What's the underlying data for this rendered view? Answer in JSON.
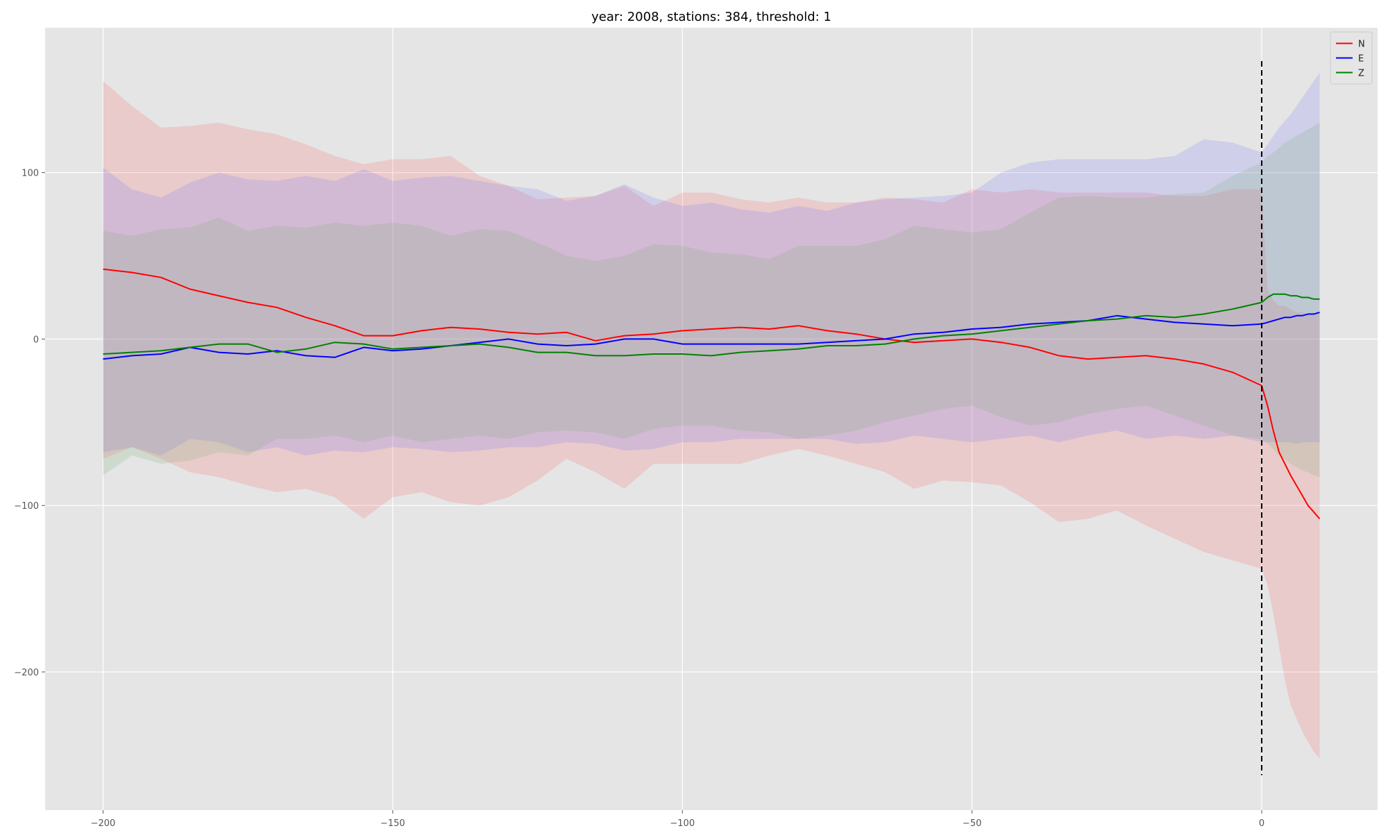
{
  "chart_data": {
    "type": "line",
    "title": "year: 2008, stations: 384, threshold: 1",
    "xlabel": "",
    "ylabel": "",
    "xlim": [
      -210,
      20
    ],
    "ylim": [
      -283,
      187
    ],
    "x_ticks": [
      -200,
      -150,
      -100,
      -50,
      0
    ],
    "y_ticks": [
      -200,
      -100,
      0,
      100
    ],
    "x_tick_labels": [
      "−200",
      "−150",
      "−100",
      "−50",
      "0"
    ],
    "y_tick_labels": [
      "−200",
      "−100",
      "0",
      "100"
    ],
    "grid": true,
    "background": "#e5e5e5",
    "legend_position": "top-right",
    "vline": {
      "x": 0,
      "y_range": [
        -262,
        167
      ],
      "style": "dashed",
      "color": "#000000"
    },
    "series": [
      {
        "name": "N",
        "color": "#ff0000",
        "band_color": "rgba(255,80,80,0.17)",
        "x": [
          -200,
          -195,
          -190,
          -185,
          -180,
          -175,
          -170,
          -165,
          -160,
          -155,
          -150,
          -145,
          -140,
          -135,
          -130,
          -125,
          -120,
          -115,
          -110,
          -105,
          -100,
          -95,
          -90,
          -85,
          -80,
          -75,
          -70,
          -65,
          -60,
          -55,
          -50,
          -45,
          -40,
          -35,
          -30,
          -25,
          -20,
          -15,
          -10,
          -5,
          0,
          1,
          2,
          3,
          4,
          5,
          6,
          7,
          8,
          9,
          10
        ],
        "mean": [
          42,
          40,
          37,
          30,
          26,
          22,
          19,
          13,
          8,
          2,
          2,
          5,
          7,
          6,
          4,
          3,
          4,
          -1,
          2,
          3,
          5,
          6,
          7,
          6,
          8,
          5,
          3,
          0,
          -2,
          -1,
          0,
          -2,
          -5,
          -10,
          -12,
          -11,
          -10,
          -12,
          -15,
          -20,
          -28,
          -40,
          -55,
          -68,
          -75,
          -82,
          -88,
          -94,
          -100,
          -104,
          -108
        ],
        "upper": [
          155,
          140,
          127,
          128,
          130,
          126,
          123,
          117,
          110,
          105,
          108,
          108,
          110,
          98,
          92,
          84,
          85,
          86,
          92,
          80,
          88,
          88,
          84,
          82,
          85,
          82,
          82,
          85,
          84,
          82,
          90,
          88,
          90,
          88,
          88,
          88,
          88,
          86,
          86,
          90,
          90,
          30,
          23,
          20,
          20,
          18,
          16,
          16,
          15,
          15,
          15
        ],
        "lower": [
          -72,
          -65,
          -72,
          -80,
          -83,
          -88,
          -92,
          -90,
          -95,
          -108,
          -95,
          -92,
          -98,
          -100,
          -95,
          -85,
          -72,
          -80,
          -90,
          -75,
          -75,
          -75,
          -75,
          -70,
          -66,
          -70,
          -75,
          -80,
          -90,
          -85,
          -86,
          -88,
          -98,
          -110,
          -108,
          -103,
          -112,
          -120,
          -128,
          -133,
          -138,
          -148,
          -165,
          -185,
          -205,
          -220,
          -228,
          -236,
          -242,
          -248,
          -252
        ]
      },
      {
        "name": "E",
        "color": "#0000ff",
        "band_color": "rgba(110,110,255,0.18)",
        "x": [
          -200,
          -195,
          -190,
          -185,
          -180,
          -175,
          -170,
          -165,
          -160,
          -155,
          -150,
          -145,
          -140,
          -135,
          -130,
          -125,
          -120,
          -115,
          -110,
          -105,
          -100,
          -95,
          -90,
          -85,
          -80,
          -75,
          -70,
          -65,
          -60,
          -55,
          -50,
          -45,
          -40,
          -35,
          -30,
          -25,
          -20,
          -15,
          -10,
          -5,
          0,
          1,
          2,
          3,
          4,
          5,
          6,
          7,
          8,
          9,
          10
        ],
        "mean": [
          -12,
          -10,
          -9,
          -5,
          -8,
          -9,
          -7,
          -10,
          -11,
          -5,
          -7,
          -6,
          -4,
          -2,
          0,
          -3,
          -4,
          -3,
          0,
          0,
          -3,
          -3,
          -3,
          -3,
          -3,
          -2,
          -1,
          0,
          3,
          4,
          6,
          7,
          9,
          10,
          11,
          14,
          12,
          10,
          9,
          8,
          9,
          10,
          11,
          12,
          13,
          13,
          14,
          14,
          15,
          15,
          16
        ],
        "upper": [
          103,
          90,
          85,
          94,
          100,
          96,
          95,
          98,
          95,
          102,
          95,
          97,
          98,
          95,
          92,
          90,
          83,
          86,
          93,
          85,
          80,
          82,
          78,
          76,
          80,
          77,
          82,
          84,
          85,
          86,
          88,
          100,
          106,
          108,
          108,
          108,
          108,
          110,
          120,
          118,
          112,
          117,
          122,
          127,
          131,
          135,
          140,
          145,
          150,
          155,
          160
        ],
        "lower": [
          -68,
          -65,
          -70,
          -60,
          -62,
          -68,
          -65,
          -70,
          -67,
          -68,
          -65,
          -66,
          -68,
          -67,
          -65,
          -65,
          -62,
          -63,
          -67,
          -66,
          -62,
          -62,
          -60,
          -60,
          -60,
          -60,
          -63,
          -62,
          -58,
          -60,
          -62,
          -60,
          -58,
          -62,
          -58,
          -55,
          -60,
          -58,
          -60,
          -58,
          -62,
          -62,
          -62,
          -62,
          -62,
          -62,
          -63,
          -62,
          -62,
          -62,
          -62
        ]
      },
      {
        "name": "Z",
        "color": "#008000",
        "band_color": "rgba(110,170,110,0.18)",
        "x": [
          -200,
          -195,
          -190,
          -185,
          -180,
          -175,
          -170,
          -165,
          -160,
          -155,
          -150,
          -145,
          -140,
          -135,
          -130,
          -125,
          -120,
          -115,
          -110,
          -105,
          -100,
          -95,
          -90,
          -85,
          -80,
          -75,
          -70,
          -65,
          -60,
          -55,
          -50,
          -45,
          -40,
          -35,
          -30,
          -25,
          -20,
          -15,
          -10,
          -5,
          0,
          1,
          2,
          3,
          4,
          5,
          6,
          7,
          8,
          9,
          10
        ],
        "mean": [
          -9,
          -8,
          -7,
          -5,
          -3,
          -3,
          -8,
          -6,
          -2,
          -3,
          -6,
          -5,
          -4,
          -3,
          -5,
          -8,
          -8,
          -10,
          -10,
          -9,
          -9,
          -10,
          -8,
          -7,
          -6,
          -4,
          -4,
          -3,
          0,
          2,
          3,
          5,
          7,
          9,
          11,
          12,
          14,
          13,
          15,
          18,
          22,
          25,
          27,
          27,
          27,
          26,
          26,
          25,
          25,
          24,
          24
        ],
        "upper": [
          65,
          62,
          66,
          67,
          73,
          65,
          68,
          67,
          70,
          68,
          70,
          68,
          62,
          66,
          65,
          58,
          50,
          47,
          50,
          57,
          56,
          52,
          51,
          48,
          56,
          56,
          56,
          60,
          68,
          66,
          64,
          66,
          76,
          85,
          86,
          85,
          85,
          87,
          88,
          98,
          106,
          110,
          112,
          115,
          118,
          120,
          122,
          124,
          126,
          128,
          130
        ],
        "lower": [
          -82,
          -70,
          -75,
          -73,
          -68,
          -70,
          -60,
          -60,
          -58,
          -62,
          -58,
          -62,
          -60,
          -58,
          -60,
          -56,
          -55,
          -56,
          -60,
          -54,
          -52,
          -52,
          -55,
          -56,
          -60,
          -58,
          -55,
          -50,
          -46,
          -42,
          -40,
          -47,
          -52,
          -50,
          -45,
          -42,
          -40,
          -46,
          -52,
          -58,
          -60,
          -63,
          -66,
          -70,
          -72,
          -75,
          -77,
          -79,
          -80,
          -82,
          -83
        ]
      }
    ]
  }
}
